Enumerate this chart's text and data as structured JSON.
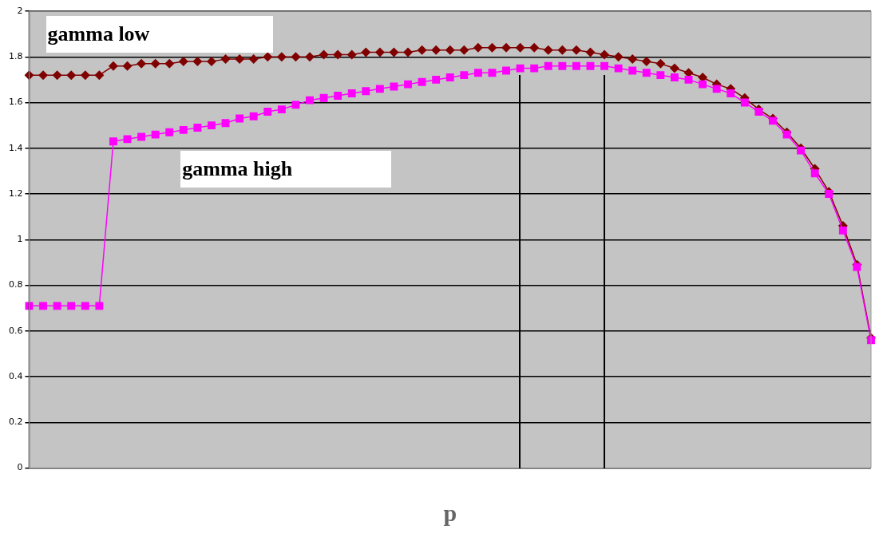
{
  "chart_data": {
    "type": "line",
    "xlabel": "p",
    "categories": [
      null,
      null,
      null,
      null,
      null,
      null,
      null,
      null,
      null,
      null,
      null,
      null,
      null,
      null,
      null,
      null,
      null,
      null,
      null,
      null,
      null,
      null,
      null,
      null,
      null,
      null,
      null,
      null,
      null,
      null,
      null,
      null,
      null,
      null,
      null,
      null,
      null,
      null,
      null,
      null,
      null,
      null,
      null,
      null,
      null,
      null,
      null,
      null,
      null,
      null,
      null,
      null,
      null,
      null,
      null,
      null,
      null,
      null,
      null,
      null,
      null
    ],
    "series": [
      {
        "name": "gamma low",
        "color": "#800000",
        "marker": "diamond",
        "values": [
          1.72,
          1.72,
          1.72,
          1.72,
          1.72,
          1.72,
          1.76,
          1.76,
          1.77,
          1.77,
          1.77,
          1.78,
          1.78,
          1.78,
          1.79,
          1.79,
          1.79,
          1.8,
          1.8,
          1.8,
          1.8,
          1.81,
          1.81,
          1.81,
          1.82,
          1.82,
          1.82,
          1.82,
          1.83,
          1.83,
          1.83,
          1.83,
          1.84,
          1.84,
          1.84,
          1.84,
          1.84,
          1.83,
          1.83,
          1.83,
          1.82,
          1.81,
          1.8,
          1.79,
          1.78,
          1.77,
          1.75,
          1.73,
          1.71,
          1.68,
          1.66,
          1.62,
          1.57,
          1.53,
          1.47,
          1.4,
          1.31,
          1.21,
          1.06,
          0.89,
          0.57
        ]
      },
      {
        "name": "gamma high",
        "color": "#ff00ff",
        "marker": "square",
        "values": [
          0.71,
          0.71,
          0.71,
          0.71,
          0.71,
          0.71,
          1.43,
          1.44,
          1.45,
          1.46,
          1.47,
          1.48,
          1.49,
          1.5,
          1.51,
          1.53,
          1.54,
          1.56,
          1.57,
          1.59,
          1.61,
          1.62,
          1.63,
          1.64,
          1.65,
          1.66,
          1.67,
          1.68,
          1.69,
          1.7,
          1.71,
          1.72,
          1.73,
          1.73,
          1.74,
          1.75,
          1.75,
          1.76,
          1.76,
          1.76,
          1.76,
          1.76,
          1.75,
          1.74,
          1.73,
          1.72,
          1.71,
          1.7,
          1.68,
          1.66,
          1.64,
          1.6,
          1.56,
          1.52,
          1.46,
          1.39,
          1.29,
          1.2,
          1.04,
          0.88,
          0.56
        ]
      }
    ],
    "ylim": [
      0,
      2
    ],
    "yticks": [
      0,
      0.2,
      0.4,
      0.6,
      0.8,
      1,
      1.2,
      1.4,
      1.6,
      1.8,
      2
    ],
    "grid": "y",
    "legend": false,
    "line_style": "solid"
  }
}
